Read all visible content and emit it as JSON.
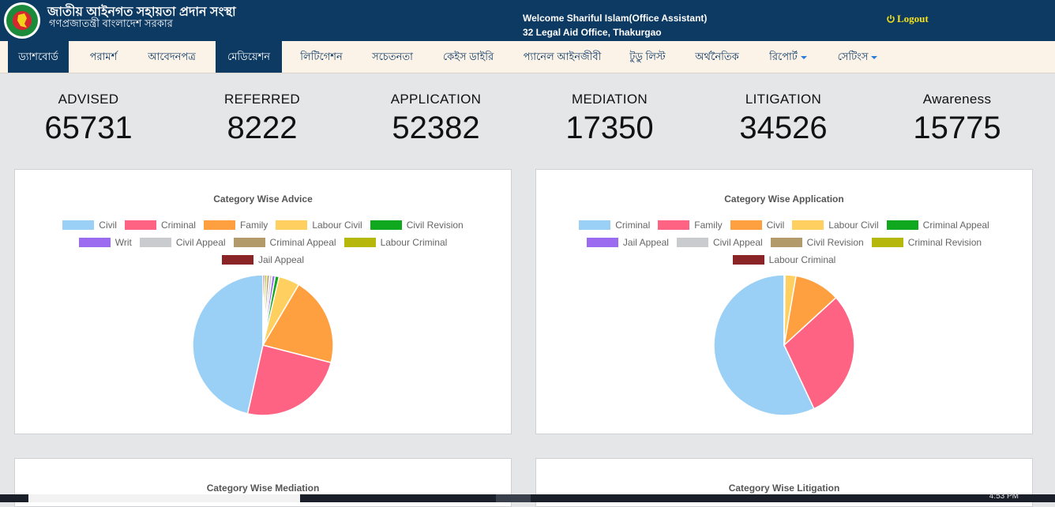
{
  "header": {
    "org_title": "জাতীয় আইনগত সহায়তা প্রদান সংস্থা",
    "org_subtitle": "গণপ্রজাতন্ত্রী বাংলাদেশ সরকার",
    "welcome": "Welcome  Shariful Islam(Office Assistant)",
    "office": "32 Legal Aid Office, Thakurgao",
    "logout_label": "Logout",
    "logout_icon": "power-icon",
    "logout_color": "#f5e11a",
    "logo_icon": "government-seal-icon"
  },
  "nav": {
    "items": [
      {
        "label": "ড্যাশবোর্ড",
        "active": true
      },
      {
        "label": "পরামর্শ"
      },
      {
        "label": "আবেদনপত্র"
      },
      {
        "label": "মেডিয়েশন",
        "active": true
      },
      {
        "label": "লিটিগেশন"
      },
      {
        "label": "সচেতনতা"
      },
      {
        "label": "কেইস ডাইরি"
      },
      {
        "label": "প্যানেল আইনজীবী"
      },
      {
        "label": "টুডু লিস্ট"
      },
      {
        "label": "অর্থনৈতিক"
      },
      {
        "label": "রিপোর্ট",
        "dropdown": true
      },
      {
        "label": "সেটিংস",
        "dropdown": true
      }
    ]
  },
  "stats": [
    {
      "label": "ADVISED",
      "value": "65731"
    },
    {
      "label": "REFERRED",
      "value": "8222"
    },
    {
      "label": "APPLICATION",
      "value": "52382"
    },
    {
      "label": "MEDIATION",
      "value": "17350"
    },
    {
      "label": "LITIGATION",
      "value": "34526"
    },
    {
      "label": "Awareness",
      "value": "15775"
    }
  ],
  "panels": {
    "mediation_title": "Category Wise Mediation",
    "litigation_title": "Category Wise Litigation"
  },
  "chart_data": [
    {
      "type": "pie",
      "title": "Category Wise Advice",
      "legend_position": "top",
      "series": [
        {
          "name": "Civil",
          "value": 46.5,
          "color": "#9ad0f5"
        },
        {
          "name": "Criminal",
          "value": 24.5,
          "color": "#ff6384"
        },
        {
          "name": "Family",
          "value": 20.5,
          "color": "#ffa040"
        },
        {
          "name": "Labour Civil",
          "value": 4.8,
          "color": "#ffd060"
        },
        {
          "name": "Civil Revision",
          "value": 0.9,
          "color": "#10a81e"
        },
        {
          "name": "Writ",
          "value": 0.7,
          "color": "#9b6cf0"
        },
        {
          "name": "Civil Appeal",
          "value": 0.6,
          "color": "#c9cbcf"
        },
        {
          "name": "Criminal Appeal",
          "value": 0.6,
          "color": "#b39a6b"
        },
        {
          "name": "Labour Criminal",
          "value": 0.5,
          "color": "#b5b80a"
        },
        {
          "name": "Jail Appeal",
          "value": 0.4,
          "color": "#8b2426"
        }
      ]
    },
    {
      "type": "pie",
      "title": "Category Wise Application",
      "legend_position": "top",
      "series": [
        {
          "name": "Criminal",
          "value": 57.0,
          "color": "#9ad0f5"
        },
        {
          "name": "Family",
          "value": 29.8,
          "color": "#ff6384"
        },
        {
          "name": "Civil",
          "value": 10.5,
          "color": "#ffa040"
        },
        {
          "name": "Labour Civil",
          "value": 2.5,
          "color": "#ffd060"
        },
        {
          "name": "Criminal Appeal",
          "value": 0.05,
          "color": "#10a81e"
        },
        {
          "name": "Jail Appeal",
          "value": 0.05,
          "color": "#9b6cf0"
        },
        {
          "name": "Civil Appeal",
          "value": 0.03,
          "color": "#c9cbcf"
        },
        {
          "name": "Civil Revision",
          "value": 0.03,
          "color": "#b39a6b"
        },
        {
          "name": "Criminal Revision",
          "value": 0.02,
          "color": "#b5b80a"
        },
        {
          "name": "Labour Criminal",
          "value": 0.02,
          "color": "#8b2426"
        }
      ]
    }
  ],
  "taskbar": {
    "clock": "4:53 PM"
  }
}
